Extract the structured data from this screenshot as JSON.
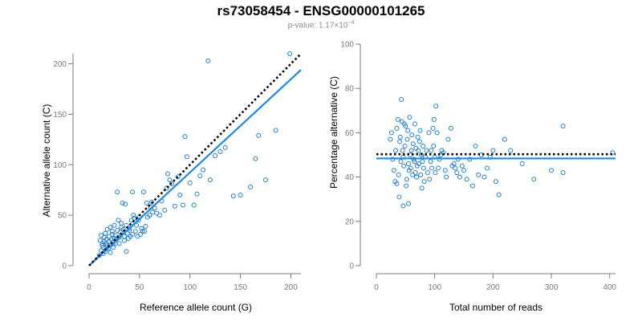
{
  "header": {
    "title": "rs73058454 - ENSG00000101265",
    "pvalue_prefix": "p-value: 1.17×10",
    "pvalue_exponent": "−4"
  },
  "colors": {
    "points": "#1f7fd0",
    "fit_line": "#1e88e5",
    "reference_line": "#000000",
    "axis": "#7a7a7a"
  },
  "chart_data": [
    {
      "type": "scatter",
      "title": "",
      "xlabel": "Reference allele count (G)",
      "ylabel": "Alternative allele count (C)",
      "xlim": [
        0,
        210
      ],
      "ylim": [
        0,
        210
      ],
      "xticks": [
        0,
        50,
        100,
        150,
        200
      ],
      "yticks": [
        0,
        50,
        100,
        150,
        200
      ],
      "grid": false,
      "fit_line": {
        "x": [
          0,
          210
        ],
        "y": [
          0,
          194
        ]
      },
      "reference_line": {
        "style": "dotted",
        "x": [
          0,
          210
        ],
        "y": [
          0,
          210
        ]
      },
      "points": [
        [
          10,
          10
        ],
        [
          11,
          25
        ],
        [
          12,
          30
        ],
        [
          12,
          15
        ],
        [
          13,
          20
        ],
        [
          13,
          22
        ],
        [
          14,
          12
        ],
        [
          14,
          18
        ],
        [
          15,
          28
        ],
        [
          15,
          24
        ],
        [
          16,
          32
        ],
        [
          16,
          14
        ],
        [
          17,
          22
        ],
        [
          17,
          26
        ],
        [
          18,
          36
        ],
        [
          18,
          20
        ],
        [
          19,
          17
        ],
        [
          20,
          29
        ],
        [
          20,
          24
        ],
        [
          21,
          38
        ],
        [
          21,
          13
        ],
        [
          22,
          21
        ],
        [
          22,
          26
        ],
        [
          23,
          34
        ],
        [
          23,
          31
        ],
        [
          24,
          18
        ],
        [
          24,
          23
        ],
        [
          25,
          27
        ],
        [
          25,
          40
        ],
        [
          26,
          22
        ],
        [
          26,
          30
        ],
        [
          27,
          26
        ],
        [
          28,
          73
        ],
        [
          28,
          35
        ],
        [
          29,
          45
        ],
        [
          30,
          28
        ],
        [
          30,
          22
        ],
        [
          31,
          33
        ],
        [
          32,
          42
        ],
        [
          32,
          38
        ],
        [
          33,
          62
        ],
        [
          34,
          36
        ],
        [
          35,
          29
        ],
        [
          35,
          25
        ],
        [
          36,
          61
        ],
        [
          37,
          40
        ],
        [
          37,
          14
        ],
        [
          38,
          32
        ],
        [
          39,
          27
        ],
        [
          40,
          35
        ],
        [
          40,
          37
        ],
        [
          41,
          29
        ],
        [
          42,
          45
        ],
        [
          43,
          31
        ],
        [
          43,
          73
        ],
        [
          44,
          50
        ],
        [
          45,
          47
        ],
        [
          46,
          34
        ],
        [
          47,
          40
        ],
        [
          48,
          29
        ],
        [
          49,
          45
        ],
        [
          50,
          48
        ],
        [
          51,
          31
        ],
        [
          52,
          37
        ],
        [
          53,
          34
        ],
        [
          54,
          73
        ],
        [
          55,
          34
        ],
        [
          56,
          39
        ],
        [
          57,
          62
        ],
        [
          58,
          48
        ],
        [
          60,
          50
        ],
        [
          61,
          58
        ],
        [
          62,
          63
        ],
        [
          63,
          53
        ],
        [
          65,
          57
        ],
        [
          67,
          52
        ],
        [
          70,
          50
        ],
        [
          72,
          64
        ],
        [
          75,
          55
        ],
        [
          77,
          77
        ],
        [
          78,
          91
        ],
        [
          80,
          85
        ],
        [
          82,
          81
        ],
        [
          85,
          59
        ],
        [
          88,
          88
        ],
        [
          90,
          70
        ],
        [
          93,
          60
        ],
        [
          95,
          128
        ],
        [
          97,
          108
        ],
        [
          100,
          82
        ],
        [
          104,
          60
        ],
        [
          107,
          71
        ],
        [
          110,
          89
        ],
        [
          113,
          95
        ],
        [
          118,
          203
        ],
        [
          120,
          85
        ],
        [
          125,
          109
        ],
        [
          130,
          113
        ],
        [
          135,
          117
        ],
        [
          143,
          69
        ],
        [
          150,
          70
        ],
        [
          160,
          78
        ],
        [
          165,
          106
        ],
        [
          168,
          129
        ],
        [
          175,
          85
        ],
        [
          185,
          134
        ],
        [
          199,
          210
        ]
      ]
    },
    {
      "type": "scatter",
      "title": "",
      "xlabel": "Total number of reads",
      "ylabel": "Percentage alternative (C)",
      "xlim": [
        0,
        410
      ],
      "ylim": [
        0,
        100
      ],
      "xticks": [
        0,
        100,
        200,
        300,
        400
      ],
      "yticks": [
        0,
        20,
        40,
        60,
        80,
        100
      ],
      "grid": false,
      "fit_line": {
        "x": [
          0,
          410
        ],
        "y": [
          48.4,
          48.4
        ]
      },
      "reference_line": {
        "style": "dotted",
        "x": [
          0,
          410
        ],
        "y": [
          50.3,
          50.3
        ]
      },
      "points": [
        [
          24,
          57
        ],
        [
          26,
          60
        ],
        [
          28,
          48
        ],
        [
          30,
          43
        ],
        [
          32,
          38
        ],
        [
          33,
          52
        ],
        [
          35,
          62
        ],
        [
          35,
          37
        ],
        [
          37,
          66
        ],
        [
          38,
          41
        ],
        [
          39,
          31
        ],
        [
          40,
          56
        ],
        [
          41,
          58
        ],
        [
          42,
          47
        ],
        [
          43,
          75
        ],
        [
          44,
          65
        ],
        [
          45,
          52
        ],
        [
          46,
          49
        ],
        [
          46,
          27
        ],
        [
          47,
          45
        ],
        [
          48,
          64
        ],
        [
          49,
          54
        ],
        [
          50,
          63
        ],
        [
          51,
          36
        ],
        [
          52,
          39
        ],
        [
          53,
          57
        ],
        [
          54,
          61
        ],
        [
          55,
          46
        ],
        [
          55,
          28
        ],
        [
          56,
          43
        ],
        [
          57,
          67
        ],
        [
          58,
          50
        ],
        [
          59,
          44
        ],
        [
          60,
          52
        ],
        [
          61,
          59
        ],
        [
          62,
          41
        ],
        [
          63,
          55
        ],
        [
          64,
          48
        ],
        [
          65,
          47
        ],
        [
          66,
          64
        ],
        [
          67,
          42
        ],
        [
          68,
          53
        ],
        [
          69,
          40
        ],
        [
          70,
          45
        ],
        [
          71,
          58
        ],
        [
          72,
          52
        ],
        [
          73,
          46
        ],
        [
          74,
          56
        ],
        [
          75,
          61
        ],
        [
          76,
          41
        ],
        [
          77,
          50
        ],
        [
          78,
          35
        ],
        [
          79,
          47
        ],
        [
          80,
          54
        ],
        [
          81,
          44
        ],
        [
          82,
          38
        ],
        [
          84,
          49
        ],
        [
          86,
          52
        ],
        [
          88,
          42
        ],
        [
          90,
          60
        ],
        [
          91,
          39
        ],
        [
          93,
          47
        ],
        [
          94,
          52
        ],
        [
          95,
          44
        ],
        [
          97,
          62
        ],
        [
          98,
          54
        ],
        [
          99,
          66
        ],
        [
          100,
          49
        ],
        [
          101,
          42
        ],
        [
          102,
          72
        ],
        [
          104,
          60
        ],
        [
          106,
          44
        ],
        [
          108,
          48
        ],
        [
          110,
          50
        ],
        [
          112,
          52
        ],
        [
          115,
          51
        ],
        [
          118,
          43
        ],
        [
          120,
          40
        ],
        [
          123,
          57
        ],
        [
          128,
          62
        ],
        [
          130,
          45
        ],
        [
          133,
          46
        ],
        [
          135,
          44
        ],
        [
          138,
          42
        ],
        [
          140,
          48
        ],
        [
          143,
          40
        ],
        [
          147,
          45
        ],
        [
          150,
          43
        ],
        [
          155,
          39
        ],
        [
          160,
          48
        ],
        [
          165,
          36
        ],
        [
          170,
          54
        ],
        [
          175,
          41
        ],
        [
          180,
          50
        ],
        [
          185,
          40
        ],
        [
          190,
          44
        ],
        [
          195,
          49
        ],
        [
          200,
          52
        ],
        [
          205,
          38
        ],
        [
          210,
          32
        ],
        [
          220,
          57
        ],
        [
          230,
          52
        ],
        [
          250,
          46
        ],
        [
          270,
          39
        ],
        [
          300,
          43
        ],
        [
          320,
          63
        ],
        [
          320,
          42
        ],
        [
          405,
          51
        ]
      ]
    }
  ]
}
